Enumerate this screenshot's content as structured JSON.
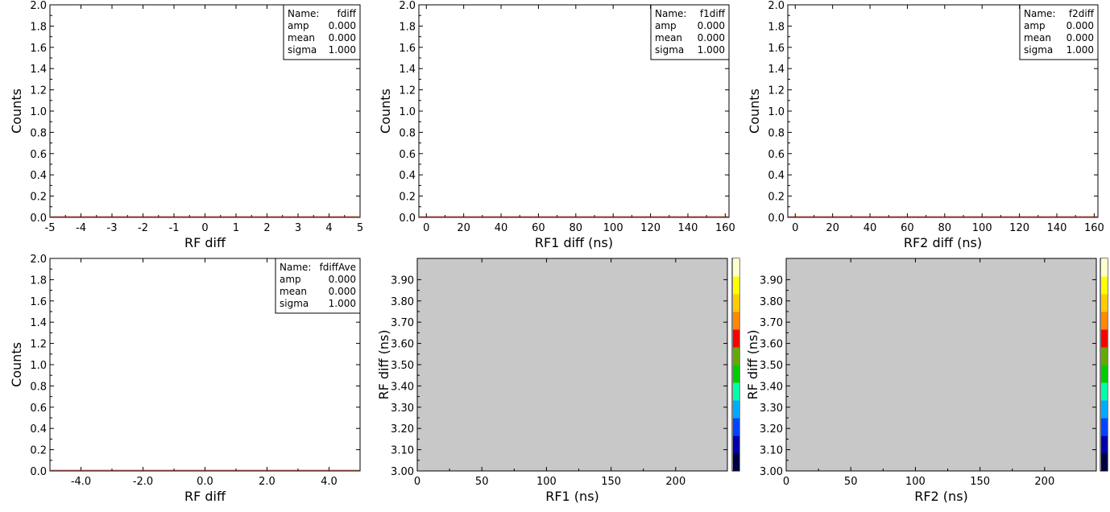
{
  "chart_data": [
    {
      "id": "p1",
      "type": "histogram",
      "xlabel": "RF diff",
      "ylabel": "Counts",
      "xlim": [
        -5,
        5
      ],
      "ylim": [
        0,
        2
      ],
      "xticks": [
        "-5",
        "-4",
        "-3",
        "-2",
        "-1",
        "0",
        "1",
        "2",
        "3",
        "4",
        "5"
      ],
      "xtick_values": [
        -5,
        -4,
        -3,
        -2,
        -1,
        0,
        1,
        2,
        3,
        4,
        5
      ],
      "yticks": [
        "0.0",
        "0.2",
        "0.4",
        "0.6",
        "0.8",
        "1.0",
        "1.2",
        "1.4",
        "1.6",
        "1.8",
        "2.0"
      ],
      "ytick_values": [
        0,
        0.2,
        0.4,
        0.6,
        0.8,
        1.0,
        1.2,
        1.4,
        1.6,
        1.8,
        2.0
      ],
      "values_line": [
        0,
        0
      ],
      "fit_color": "#cc2200",
      "stats": [
        {
          "label": "Name:",
          "value": "fdiff"
        },
        {
          "label": "amp",
          "value": "0.000"
        },
        {
          "label": "mean",
          "value": "0.000"
        },
        {
          "label": "sigma",
          "value": "1.000"
        }
      ]
    },
    {
      "id": "p2",
      "type": "histogram",
      "xlabel": "RF1 diff (ns)",
      "ylabel": "Counts",
      "xlim": [
        -4,
        162
      ],
      "ylim": [
        0,
        2
      ],
      "xticks": [
        "0",
        "20",
        "40",
        "60",
        "80",
        "100",
        "120",
        "140",
        "160"
      ],
      "xtick_values": [
        0,
        20,
        40,
        60,
        80,
        100,
        120,
        140,
        160
      ],
      "yticks": [
        "0.0",
        "0.2",
        "0.4",
        "0.6",
        "0.8",
        "1.0",
        "1.2",
        "1.4",
        "1.6",
        "1.8",
        "2.0"
      ],
      "ytick_values": [
        0,
        0.2,
        0.4,
        0.6,
        0.8,
        1.0,
        1.2,
        1.4,
        1.6,
        1.8,
        2.0
      ],
      "values_line": [
        0,
        0
      ],
      "fit_color": "#cc2200",
      "stats": [
        {
          "label": "Name:",
          "value": "f1diff"
        },
        {
          "label": "amp",
          "value": "0.000"
        },
        {
          "label": "mean",
          "value": "0.000"
        },
        {
          "label": "sigma",
          "value": "1.000"
        }
      ]
    },
    {
      "id": "p3",
      "type": "histogram",
      "xlabel": "RF2 diff (ns)",
      "ylabel": "Counts",
      "xlim": [
        -4,
        162
      ],
      "ylim": [
        0,
        2
      ],
      "xticks": [
        "0",
        "20",
        "40",
        "60",
        "80",
        "100",
        "120",
        "140",
        "160"
      ],
      "xtick_values": [
        0,
        20,
        40,
        60,
        80,
        100,
        120,
        140,
        160
      ],
      "yticks": [
        "0.0",
        "0.2",
        "0.4",
        "0.6",
        "0.8",
        "1.0",
        "1.2",
        "1.4",
        "1.6",
        "1.8",
        "2.0"
      ],
      "ytick_values": [
        0,
        0.2,
        0.4,
        0.6,
        0.8,
        1.0,
        1.2,
        1.4,
        1.6,
        1.8,
        2.0
      ],
      "values_line": [
        0,
        0
      ],
      "fit_color": "#cc2200",
      "stats": [
        {
          "label": "Name:",
          "value": "f2diff"
        },
        {
          "label": "amp",
          "value": "0.000"
        },
        {
          "label": "mean",
          "value": "0.000"
        },
        {
          "label": "sigma",
          "value": "1.000"
        }
      ]
    },
    {
      "id": "p4",
      "type": "histogram",
      "xlabel": "RF diff",
      "ylabel": "Counts",
      "xlim": [
        -5,
        5
      ],
      "ylim": [
        0,
        2
      ],
      "xticks": [
        "-4.0",
        "-2.0",
        "0.0",
        "2.0",
        "4.0"
      ],
      "xtick_values": [
        -4,
        -2,
        0,
        2,
        4
      ],
      "yticks": [
        "0.0",
        "0.2",
        "0.4",
        "0.6",
        "0.8",
        "1.0",
        "1.2",
        "1.4",
        "1.6",
        "1.8",
        "2.0"
      ],
      "ytick_values": [
        0,
        0.2,
        0.4,
        0.6,
        0.8,
        1.0,
        1.2,
        1.4,
        1.6,
        1.8,
        2.0
      ],
      "values_line": [
        0,
        0
      ],
      "fit_color": "#cc2200",
      "stats": [
        {
          "label": "Name:",
          "value": "fdiffAve"
        },
        {
          "label": "amp",
          "value": "0.000"
        },
        {
          "label": "mean",
          "value": "0.000"
        },
        {
          "label": "sigma",
          "value": "1.000"
        }
      ]
    },
    {
      "id": "p5",
      "type": "heatmap",
      "xlabel": "RF1 (ns)",
      "ylabel": "RF diff (ns)",
      "xlim": [
        0,
        240
      ],
      "ylim": [
        3.0,
        4.0
      ],
      "xticks": [
        "0",
        "50",
        "100",
        "150",
        "200"
      ],
      "xtick_values": [
        0,
        50,
        100,
        150,
        200
      ],
      "yticks": [
        "3.00",
        "3.10",
        "3.20",
        "3.30",
        "3.40",
        "3.50",
        "3.60",
        "3.70",
        "3.80",
        "3.90"
      ],
      "ytick_values": [
        3.0,
        3.1,
        3.2,
        3.3,
        3.4,
        3.5,
        3.6,
        3.7,
        3.8,
        3.9
      ],
      "background": "#c8c8c8",
      "colorbar": [
        "#000044",
        "#0000aa",
        "#0044ff",
        "#00aaff",
        "#00ffaa",
        "#00cc00",
        "#66aa00",
        "#ff0000",
        "#ff8800",
        "#ffcc00",
        "#ffff00",
        "#ffffcc"
      ]
    },
    {
      "id": "p6",
      "type": "heatmap",
      "xlabel": "RF2 (ns)",
      "ylabel": "RF diff (ns)",
      "xlim": [
        0,
        240
      ],
      "ylim": [
        3.0,
        4.0
      ],
      "xticks": [
        "0",
        "50",
        "100",
        "150",
        "200"
      ],
      "xtick_values": [
        0,
        50,
        100,
        150,
        200
      ],
      "yticks": [
        "3.00",
        "3.10",
        "3.20",
        "3.30",
        "3.40",
        "3.50",
        "3.60",
        "3.70",
        "3.80",
        "3.90"
      ],
      "ytick_values": [
        3.0,
        3.1,
        3.2,
        3.3,
        3.4,
        3.5,
        3.6,
        3.7,
        3.8,
        3.9
      ],
      "background": "#c8c8c8",
      "colorbar": [
        "#000044",
        "#0000aa",
        "#0044ff",
        "#00aaff",
        "#00ffaa",
        "#00cc00",
        "#66aa00",
        "#ff0000",
        "#ff8800",
        "#ffcc00",
        "#ffff00",
        "#ffffcc"
      ]
    }
  ]
}
